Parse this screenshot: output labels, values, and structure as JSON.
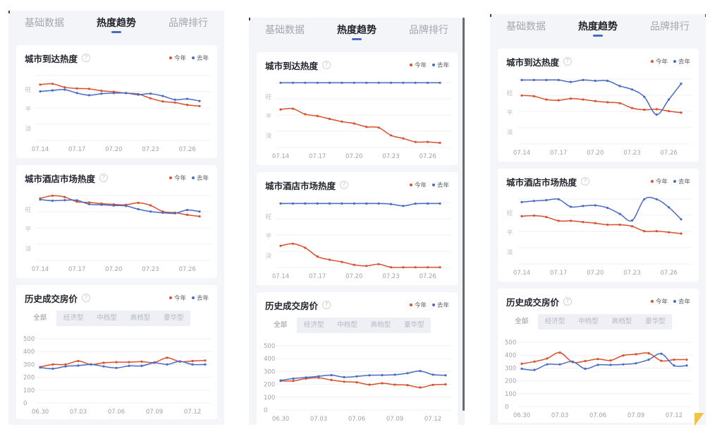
{
  "tabs": {
    "items": [
      "基础数据",
      "热度趋势",
      "品牌排行"
    ],
    "active_index": 1
  },
  "segments": {
    "items": [
      "全部",
      "经济型",
      "中档型",
      "高档型",
      "豪华型"
    ],
    "active_index": 0
  },
  "icons": {
    "help": "question-circle-icon",
    "corner": "yellow-triangle-icon"
  },
  "colors": {
    "this_year": "#d9502f",
    "last_year": "#4a6bc5",
    "active_tab_indicator": "#4a6bc5",
    "panel_background": "#f4f5f9",
    "card_background": "#ffffff",
    "corner_triangle": "#f5c33b"
  },
  "chart_data": [
    {
      "type": "line",
      "title": "城市到达热度",
      "xlabel": "",
      "ylabel": "",
      "legend": "top-right",
      "x": [
        "07.14",
        "07.15",
        "07.16",
        "07.17",
        "07.18",
        "07.19",
        "07.20",
        "07.21",
        "07.22",
        "07.23",
        "07.24",
        "07.25",
        "07.26",
        "07.27"
      ],
      "x_tick_labels": [
        "07.14",
        "07.17",
        "07.20",
        "07.23",
        "07.26"
      ],
      "y_ticks": [
        {
          "value": 3,
          "label": "旺"
        },
        {
          "value": 2,
          "label": "平"
        },
        {
          "value": 1,
          "label": "淡"
        }
      ],
      "ylim": [
        0.37,
        3.73
      ],
      "series": [
        {
          "name": "今年",
          "color": "#d9502f",
          "values": [
            3.26,
            3.3,
            3.12,
            3.06,
            3.04,
            2.94,
            2.89,
            2.82,
            2.77,
            2.55,
            2.39,
            2.33,
            2.21,
            2.15
          ]
        },
        {
          "name": "去年",
          "color": "#4a6bc5",
          "values": [
            2.91,
            2.96,
            3.0,
            2.82,
            2.71,
            2.79,
            2.82,
            2.82,
            2.74,
            2.79,
            2.67,
            2.48,
            2.52,
            2.41
          ]
        }
      ]
    },
    {
      "type": "line",
      "title": "城市酒店市场热度",
      "xlabel": "",
      "ylabel": "",
      "legend": "top-right",
      "x": [
        "07.14",
        "07.15",
        "07.16",
        "07.17",
        "07.18",
        "07.19",
        "07.20",
        "07.21",
        "07.22",
        "07.23",
        "07.24",
        "07.25",
        "07.26",
        "07.27"
      ],
      "x_tick_labels": [
        "07.14",
        "07.17",
        "07.20",
        "07.23",
        "07.26"
      ],
      "y_ticks": [
        {
          "value": 3,
          "label": "旺"
        },
        {
          "value": 2,
          "label": "平"
        },
        {
          "value": 1,
          "label": "淡"
        }
      ],
      "ylim": [
        0.37,
        3.73
      ],
      "series": [
        {
          "name": "今年",
          "color": "#d9502f",
          "values": [
            3.58,
            3.72,
            3.65,
            3.41,
            3.37,
            3.31,
            3.27,
            3.25,
            3.35,
            3.22,
            2.9,
            2.84,
            2.73,
            2.65
          ]
        },
        {
          "name": "去年",
          "color": "#4a6bc5",
          "values": [
            3.52,
            3.46,
            3.49,
            3.48,
            3.28,
            3.25,
            3.21,
            3.19,
            3.02,
            2.9,
            2.84,
            2.81,
            2.98,
            2.9
          ]
        }
      ]
    },
    {
      "type": "line",
      "title": "历史成交房价",
      "xlabel": "",
      "ylabel": "",
      "legend": "top-right",
      "x": [
        "06.30",
        "07.01",
        "07.02",
        "07.03",
        "07.04",
        "07.05",
        "07.06",
        "07.07",
        "07.08",
        "07.09",
        "07.10",
        "07.11",
        "07.12",
        "07.13"
      ],
      "x_tick_labels": [
        "06.30",
        "07.03",
        "07.06",
        "07.09",
        "07.12"
      ],
      "y_ticks": [
        {
          "value": 500,
          "label": "500"
        },
        {
          "value": 400,
          "label": "400"
        },
        {
          "value": 300,
          "label": "300"
        },
        {
          "value": 200,
          "label": "200"
        },
        {
          "value": 100,
          "label": "100"
        },
        {
          "value": 0,
          "label": "0"
        }
      ],
      "ylim": [
        0,
        500
      ],
      "series": [
        {
          "name": "今年",
          "color": "#d9502f",
          "values": [
            280,
            300,
            300,
            327,
            300,
            313,
            318,
            318,
            322,
            316,
            352,
            322,
            327,
            331
          ]
        },
        {
          "name": "去年",
          "color": "#4a6bc5",
          "values": [
            276,
            267,
            285,
            291,
            300,
            285,
            273,
            289,
            289,
            313,
            300,
            324,
            300,
            300
          ]
        }
      ]
    },
    {
      "type": "line",
      "title": "城市到达热度",
      "xlabel": "",
      "ylabel": "",
      "legend": "top-right",
      "x": [
        "07.14",
        "07.15",
        "07.16",
        "07.17",
        "07.18",
        "07.19",
        "07.20",
        "07.21",
        "07.22",
        "07.23",
        "07.24",
        "07.25",
        "07.26",
        "07.27"
      ],
      "x_tick_labels": [
        "07.14",
        "07.17",
        "07.20",
        "07.23",
        "07.26"
      ],
      "y_ticks": [
        {
          "value": 3,
          "label": "旺"
        },
        {
          "value": 2,
          "label": "平"
        },
        {
          "value": 1,
          "label": "淡"
        }
      ],
      "ylim": [
        0.37,
        3.73
      ],
      "series": [
        {
          "name": "今年",
          "color": "#d9502f",
          "values": [
            2.34,
            2.38,
            2.09,
            2.0,
            1.85,
            1.71,
            1.61,
            1.44,
            1.4,
            1.0,
            0.84,
            0.66,
            0.66,
            0.61
          ]
        },
        {
          "name": "去年",
          "color": "#4a6bc5",
          "values": [
            3.72,
            3.72,
            3.72,
            3.72,
            3.72,
            3.72,
            3.72,
            3.72,
            3.72,
            3.72,
            3.72,
            3.72,
            3.72,
            3.72
          ]
        }
      ]
    },
    {
      "type": "line",
      "title": "城市酒店市场热度",
      "xlabel": "",
      "ylabel": "",
      "legend": "top-right",
      "x": [
        "07.14",
        "07.15",
        "07.16",
        "07.17",
        "07.18",
        "07.19",
        "07.20",
        "07.21",
        "07.22",
        "07.23",
        "07.24",
        "07.25",
        "07.26",
        "07.27"
      ],
      "x_tick_labels": [
        "07.14",
        "07.17",
        "07.20",
        "07.23",
        "07.26"
      ],
      "y_ticks": [
        {
          "value": 3,
          "label": "旺"
        },
        {
          "value": 2,
          "label": "平"
        },
        {
          "value": 1,
          "label": "淡"
        }
      ],
      "ylim": [
        0.37,
        3.73
      ],
      "series": [
        {
          "name": "今年",
          "color": "#d9502f",
          "values": [
            1.49,
            1.6,
            1.39,
            0.94,
            0.77,
            0.66,
            0.51,
            0.45,
            0.54,
            0.38,
            0.38,
            0.38,
            0.38,
            0.38
          ]
        },
        {
          "name": "去年",
          "color": "#4a6bc5",
          "values": [
            3.68,
            3.68,
            3.68,
            3.68,
            3.68,
            3.68,
            3.68,
            3.68,
            3.68,
            3.65,
            3.56,
            3.67,
            3.68,
            3.68
          ]
        }
      ]
    },
    {
      "type": "line",
      "title": "历史成交房价",
      "xlabel": "",
      "ylabel": "",
      "legend": "top-right",
      "x": [
        "06.30",
        "07.01",
        "07.02",
        "07.03",
        "07.04",
        "07.05",
        "07.06",
        "07.07",
        "07.08",
        "07.09",
        "07.10",
        "07.11",
        "07.12",
        "07.13"
      ],
      "x_tick_labels": [
        "06.30",
        "07.03",
        "07.06",
        "07.09",
        "07.12"
      ],
      "y_ticks": [
        {
          "value": 500,
          "label": "500"
        },
        {
          "value": 400,
          "label": "400"
        },
        {
          "value": 300,
          "label": "300"
        },
        {
          "value": 200,
          "label": "200"
        },
        {
          "value": 100,
          "label": "100"
        },
        {
          "value": 0,
          "label": "0"
        }
      ],
      "ylim": [
        0,
        500
      ],
      "series": [
        {
          "name": "今年",
          "color": "#d9502f",
          "values": [
            227,
            227,
            245,
            251,
            234,
            221,
            216,
            198,
            209,
            198,
            194,
            176,
            196,
            200
          ]
        },
        {
          "name": "去年",
          "color": "#4a6bc5",
          "values": [
            231,
            245,
            254,
            263,
            272,
            256,
            262,
            271,
            272,
            275,
            287,
            304,
            276,
            271
          ]
        }
      ]
    },
    {
      "type": "line",
      "title": "城市到达热度",
      "xlabel": "",
      "ylabel": "",
      "legend": "top-right",
      "x": [
        "07.14",
        "07.15",
        "07.16",
        "07.17",
        "07.18",
        "07.19",
        "07.20",
        "07.21",
        "07.22",
        "07.23",
        "07.24",
        "07.25",
        "07.26",
        "07.27"
      ],
      "x_tick_labels": [
        "07.14",
        "07.17",
        "07.20",
        "07.23",
        "07.26"
      ],
      "y_ticks": [
        {
          "value": 3,
          "label": "旺"
        },
        {
          "value": 2,
          "label": "平"
        },
        {
          "value": 1,
          "label": "淡"
        }
      ],
      "ylim": [
        0.37,
        3.73
      ],
      "series": [
        {
          "name": "今年",
          "color": "#d9502f",
          "values": [
            2.88,
            2.84,
            2.67,
            2.63,
            2.72,
            2.67,
            2.59,
            2.53,
            2.48,
            2.23,
            2.14,
            2.17,
            2.07,
            1.99
          ]
        },
        {
          "name": "去年",
          "color": "#4a6bc5",
          "values": [
            3.68,
            3.68,
            3.68,
            3.68,
            3.58,
            3.68,
            3.64,
            3.64,
            3.37,
            3.19,
            2.81,
            1.89,
            2.67,
            3.49
          ]
        }
      ]
    },
    {
      "type": "line",
      "title": "城市酒店市场热度",
      "xlabel": "",
      "ylabel": "",
      "legend": "top-right",
      "x": [
        "07.14",
        "07.15",
        "07.16",
        "07.17",
        "07.18",
        "07.19",
        "07.20",
        "07.21",
        "07.22",
        "07.23",
        "07.24",
        "07.25",
        "07.26",
        "07.27"
      ],
      "x_tick_labels": [
        "07.14",
        "07.17",
        "07.20",
        "07.23",
        "07.26"
      ],
      "y_ticks": [
        {
          "value": 3,
          "label": "旺"
        },
        {
          "value": 2,
          "label": "平"
        },
        {
          "value": 1,
          "label": "淡"
        }
      ],
      "ylim": [
        0.37,
        3.73
      ],
      "series": [
        {
          "name": "今年",
          "color": "#d9502f",
          "values": [
            2.84,
            2.87,
            2.8,
            2.6,
            2.6,
            2.54,
            2.48,
            2.4,
            2.4,
            2.32,
            2.07,
            2.07,
            2.01,
            1.94
          ]
        },
        {
          "name": "去年",
          "color": "#4a6bc5",
          "values": [
            3.57,
            3.63,
            3.67,
            3.72,
            3.33,
            3.37,
            3.4,
            3.27,
            2.96,
            2.62,
            3.72,
            3.72,
            3.3,
            2.68
          ]
        }
      ]
    },
    {
      "type": "line",
      "title": "历史成交房价",
      "xlabel": "",
      "ylabel": "",
      "legend": "top-right",
      "x": [
        "06.30",
        "07.01",
        "07.02",
        "07.03",
        "07.04",
        "07.05",
        "07.06",
        "07.07",
        "07.08",
        "07.09",
        "07.10",
        "07.11",
        "07.12",
        "07.13"
      ],
      "x_tick_labels": [
        "06.30",
        "07.03",
        "07.06",
        "07.09",
        "07.12"
      ],
      "y_ticks": [
        {
          "value": 500,
          "label": "500"
        },
        {
          "value": 400,
          "label": "400"
        },
        {
          "value": 300,
          "label": "300"
        },
        {
          "value": 200,
          "label": "200"
        },
        {
          "value": 100,
          "label": "100"
        },
        {
          "value": 0,
          "label": "0"
        }
      ],
      "ylim": [
        0,
        500
      ],
      "series": [
        {
          "name": "今年",
          "color": "#d9502f",
          "values": [
            333,
            350,
            374,
            420,
            346,
            354,
            370,
            359,
            398,
            407,
            415,
            356,
            365,
            365
          ]
        },
        {
          "name": "去年",
          "color": "#4a6bc5",
          "values": [
            294,
            285,
            328,
            328,
            350,
            294,
            324,
            324,
            328,
            337,
            365,
            411,
            319,
            319
          ]
        }
      ]
    }
  ]
}
